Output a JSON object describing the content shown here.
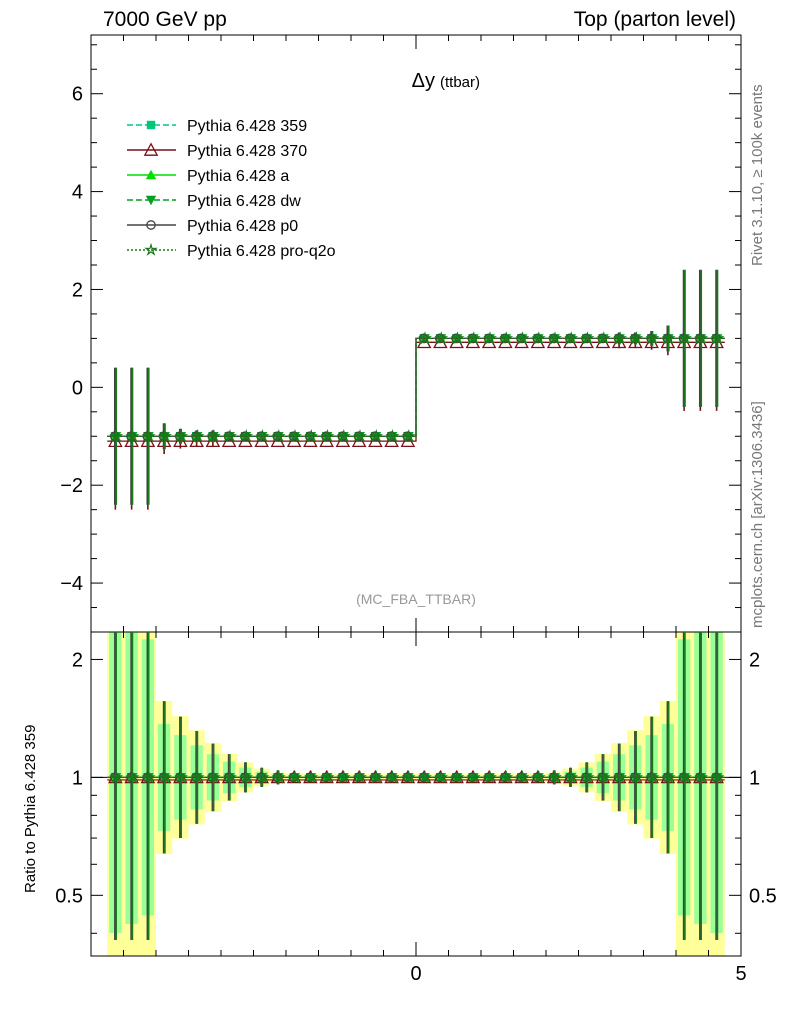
{
  "header": {
    "left": "7000 GeV pp",
    "right": "Top (parton level)"
  },
  "side": {
    "rivet": "Rivet 3.1.10, ≥ 100k events",
    "mcplots": "mcplots.cern.ch [arXiv:1306.3436]"
  },
  "chart_data": [
    {
      "type": "line",
      "title": "Δy",
      "title_suffix": "(ttbar)",
      "watermark": "(MC_FBA_TTBAR)",
      "xlim": [
        -5,
        5
      ],
      "ylim": [
        -5,
        7.2
      ],
      "yticks": [
        -4,
        -2,
        0,
        2,
        4,
        6
      ],
      "xticks": [
        0,
        5
      ],
      "legend_position": "top-left",
      "series": [
        {
          "name": "Pythia 6.428 359",
          "color": "#00c878",
          "dash": "6,3",
          "marker": "square",
          "value_left": -1,
          "value_right": 1
        },
        {
          "name": "Pythia 6.428 370",
          "color": "#7a0f18",
          "dash": "",
          "marker": "triangle-open",
          "value_left": -1.1,
          "value_right": 0.92
        },
        {
          "name": "Pythia 6.428 a",
          "color": "#00dd00",
          "dash": "",
          "marker": "triangle",
          "value_left": -1,
          "value_right": 1
        },
        {
          "name": "Pythia 6.428 dw",
          "color": "#00a020",
          "dash": "6,3",
          "marker": "triangle-down",
          "value_left": -1,
          "value_right": 1
        },
        {
          "name": "Pythia 6.428 p0",
          "color": "#444444",
          "dash": "",
          "marker": "circle-open",
          "value_left": -1,
          "value_right": 1
        },
        {
          "name": "Pythia 6.428 pro-q2o",
          "color": "#1a7a1a",
          "dash": "2,2",
          "marker": "star-open",
          "value_left": -1,
          "value_right": 1
        }
      ]
    },
    {
      "type": "line",
      "ylabel": "Ratio to Pythia 6.428 359",
      "xlim": [
        -5,
        5
      ],
      "ylim": [
        0.35,
        2.35
      ],
      "yticks": [
        0.5,
        1,
        2
      ],
      "ytick_labels": [
        "0.5",
        "1",
        "2"
      ],
      "xticks": [
        0,
        5
      ],
      "ratio_value": 1.0,
      "band_colors": {
        "outer": "#ffff99",
        "inner": "#99ff99"
      }
    }
  ]
}
